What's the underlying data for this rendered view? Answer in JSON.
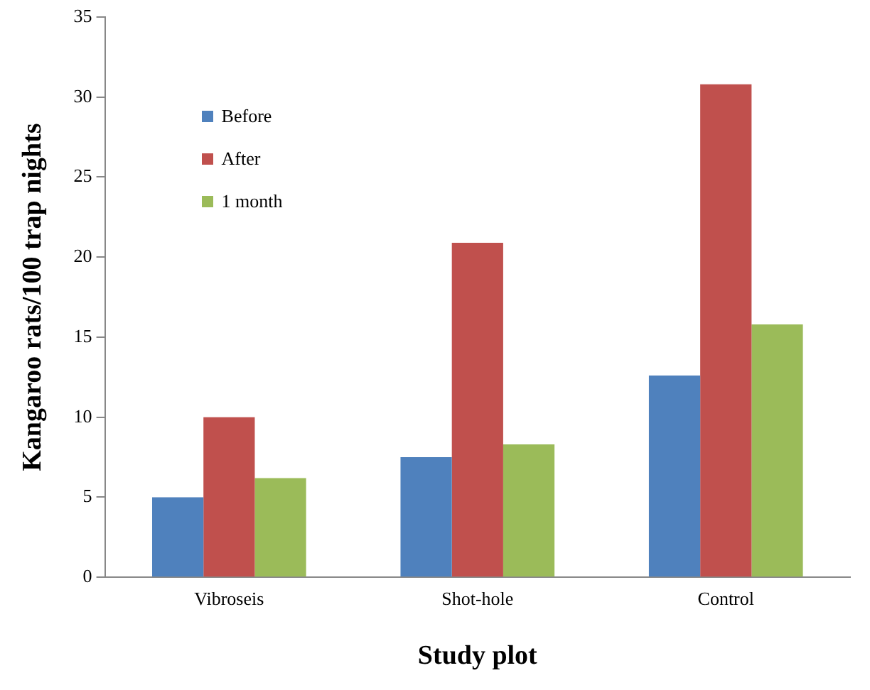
{
  "chart_data": {
    "type": "bar",
    "xlabel": "Study plot",
    "ylabel": "Kangaroo rats/100 trap nights",
    "categories": [
      "Vibroseis",
      "Shot-hole",
      "Control"
    ],
    "series": [
      {
        "name": "Before",
        "color": "#4f81bd",
        "values": [
          5.0,
          7.5,
          12.6
        ]
      },
      {
        "name": "After",
        "color": "#c0504d",
        "values": [
          10.0,
          20.9,
          30.8
        ]
      },
      {
        "name": "1 month",
        "color": "#9bbb59",
        "values": [
          6.2,
          8.3,
          15.8
        ]
      }
    ],
    "ylim": [
      0,
      35
    ],
    "yticks": [
      0,
      5,
      10,
      15,
      20,
      25,
      30,
      35
    ],
    "grid": false,
    "legend": "top left"
  }
}
